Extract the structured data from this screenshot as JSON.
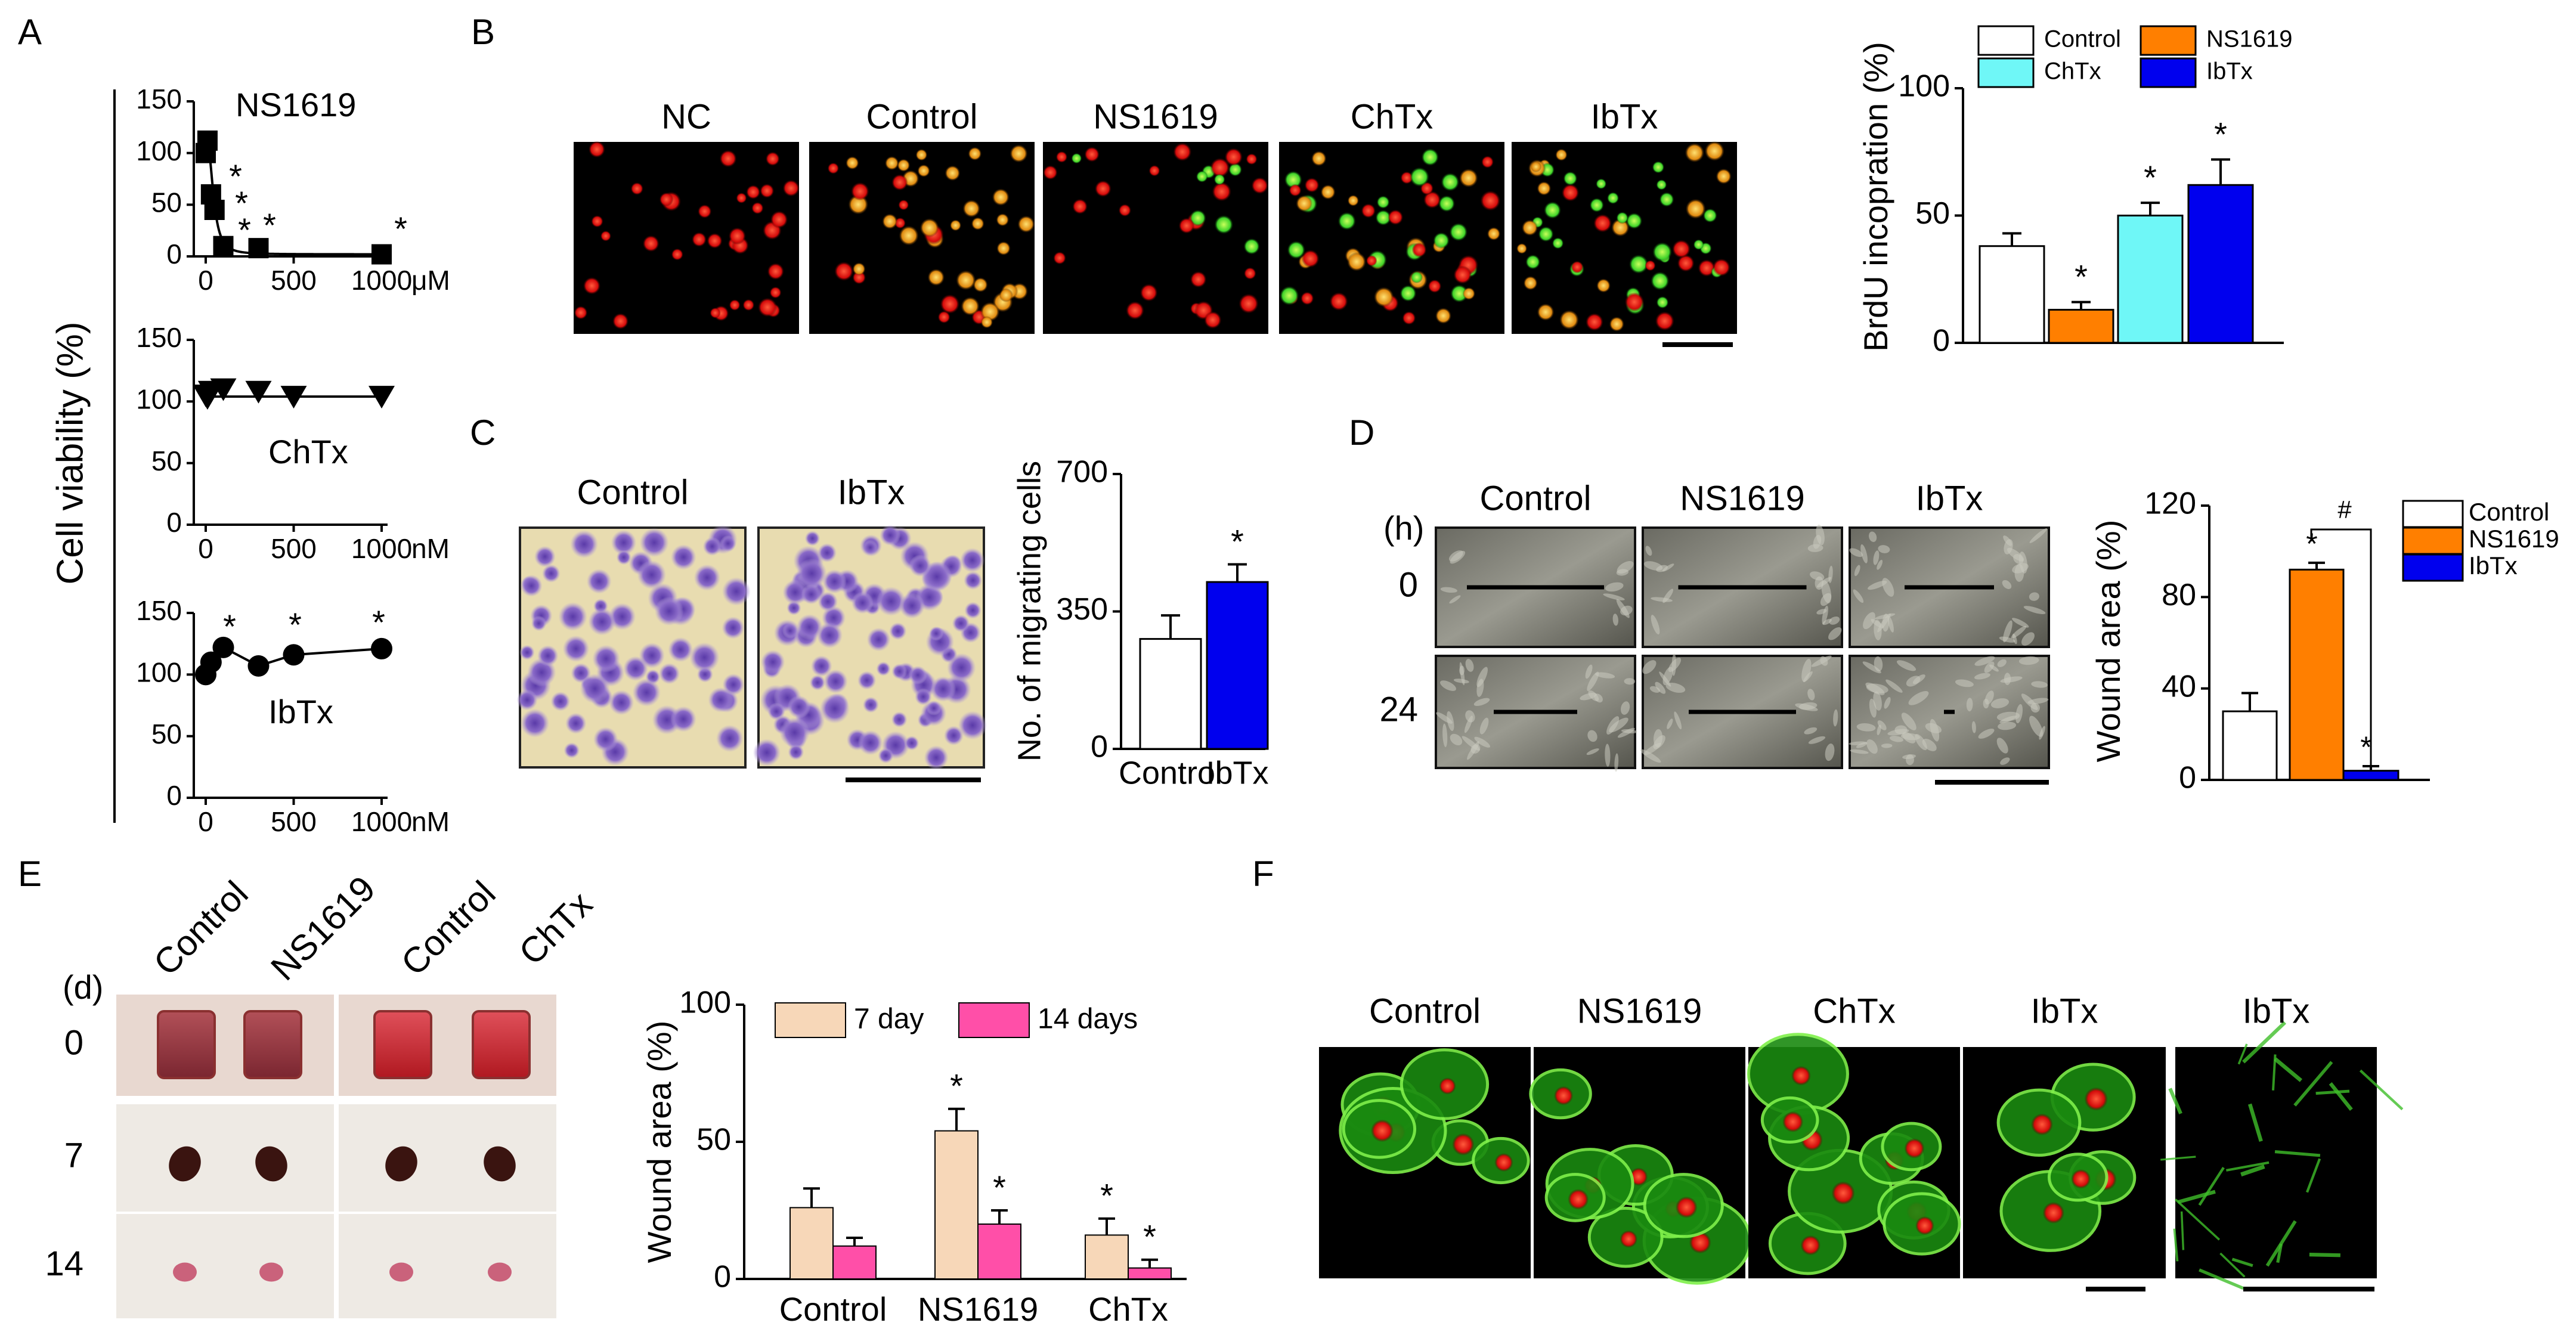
{
  "panels": {
    "A": "A",
    "B": "B",
    "C": "C",
    "D": "D",
    "E": "E",
    "F": "F"
  },
  "colors": {
    "control": "#ffffff",
    "ns1619": "#ff7f00",
    "chtx": "#6ff7f7",
    "ibtx": "#0000ee",
    "day7": "#f7d7b8",
    "day14": "#ff4fa8"
  },
  "panelA": {
    "ylabel": "Cell viability (%)",
    "sub": [
      {
        "drug": "NS1619",
        "unit": "μM",
        "yticks": [
          "150",
          "100",
          "50",
          "0"
        ],
        "xticks": [
          "0",
          "500",
          "1000"
        ]
      },
      {
        "drug": "ChTx",
        "unit": "nM",
        "yticks": [
          "150",
          "100",
          "50",
          "0"
        ],
        "xticks": [
          "0",
          "500",
          "1000"
        ]
      },
      {
        "drug": "IbTx",
        "unit": "nM",
        "yticks": [
          "150",
          "100",
          "50",
          "0"
        ],
        "xticks": [
          "0",
          "500",
          "1000"
        ]
      }
    ]
  },
  "panelB": {
    "image_labels": [
      "NC",
      "Control",
      "NS1619",
      "ChTx",
      "IbTx"
    ],
    "ylabel": "BrdU incopration (%)",
    "legend": [
      "Control",
      "NS1619",
      "ChTx",
      "IbTx"
    ],
    "star": "*"
  },
  "panelC": {
    "image_labels": [
      "Control",
      "IbTx"
    ],
    "ylabel": "No. of migrating cells",
    "star": "*"
  },
  "panelD": {
    "image_labels": [
      "Control",
      "NS1619",
      "IbTx"
    ],
    "time_unit": "(h)",
    "rows": [
      "0",
      "24"
    ],
    "ylabel": "Wound area (%)",
    "legend": [
      "Control",
      "NS1619",
      "IbTx"
    ],
    "hash": "#",
    "star": "*"
  },
  "panelE": {
    "time_unit": "(d)",
    "rows": [
      "0",
      "7",
      "14"
    ],
    "col_labels": [
      "Control",
      "NS1619",
      "Control",
      "ChTx"
    ],
    "ylabel": "Wound area (%)",
    "legend": [
      "7 day",
      "14 days"
    ],
    "star": "*"
  },
  "panelF": {
    "image_labels": [
      "Control",
      "NS1619",
      "ChTx",
      "IbTx",
      "IbTx"
    ]
  },
  "chart_data": [
    {
      "panel": "A-top",
      "type": "scatter",
      "unit": "μM",
      "x": [
        0,
        10,
        30,
        50,
        100,
        300,
        1000
      ],
      "y": [
        100,
        112,
        60,
        45,
        10,
        8,
        2
      ],
      "significant": [
        false,
        false,
        false,
        true,
        true,
        true,
        true
      ],
      "xlim": [
        0,
        1000
      ],
      "ylim": [
        0,
        150
      ]
    },
    {
      "panel": "A-middle",
      "type": "scatter",
      "unit": "nM",
      "x": [
        0,
        10,
        30,
        100,
        300,
        500,
        1000
      ],
      "y": [
        105,
        103,
        108,
        110,
        108,
        104,
        104
      ],
      "xlim": [
        0,
        1000
      ],
      "ylim": [
        0,
        150
      ]
    },
    {
      "panel": "A-bottom",
      "type": "scatter",
      "unit": "nM",
      "x": [
        0,
        30,
        100,
        300,
        500,
        1000
      ],
      "y": [
        100,
        110,
        122,
        107,
        116,
        121
      ],
      "significant": [
        false,
        false,
        true,
        false,
        true,
        true
      ],
      "xlim": [
        0,
        1000
      ],
      "ylim": [
        0,
        150
      ]
    },
    {
      "panel": "B",
      "type": "bar",
      "categories": [
        "Control",
        "NS1619",
        "ChTx",
        "IbTx"
      ],
      "values": [
        38,
        13,
        50,
        62
      ],
      "errors": [
        5,
        3,
        5,
        10
      ],
      "significant": [
        false,
        true,
        true,
        true
      ],
      "ylabel": "BrdU incopration (%)",
      "ylim": [
        0,
        100
      ],
      "yticks": [
        "0",
        "50",
        "100"
      ]
    },
    {
      "panel": "C",
      "type": "bar",
      "categories": [
        "Control",
        "IbTx"
      ],
      "values": [
        280,
        425
      ],
      "errors": [
        60,
        45
      ],
      "significant": [
        false,
        true
      ],
      "ylabel": "No. of migrating cells",
      "ylim": [
        0,
        700
      ],
      "yticks": [
        "0",
        "350",
        "700"
      ],
      "xticklabels": [
        "Control",
        "IbTx"
      ]
    },
    {
      "panel": "D",
      "type": "bar",
      "categories": [
        "Control",
        "NS1619",
        "IbTx"
      ],
      "values": [
        30,
        92,
        4
      ],
      "errors": [
        8,
        3,
        2
      ],
      "significant": [
        false,
        true,
        true
      ],
      "ylabel": "Wound area (%)",
      "ylim": [
        0,
        120
      ],
      "yticks": [
        "0",
        "40",
        "80",
        "120"
      ]
    },
    {
      "panel": "E",
      "type": "bar",
      "categories": [
        "Control",
        "NS1619",
        "ChTx"
      ],
      "series": [
        {
          "name": "7 day",
          "values": [
            26,
            54,
            16
          ],
          "errors": [
            7,
            8,
            6
          ],
          "significant": [
            false,
            true,
            true
          ]
        },
        {
          "name": "14 days",
          "values": [
            12,
            20,
            4
          ],
          "errors": [
            3,
            5,
            3
          ],
          "significant": [
            false,
            true,
            true
          ]
        }
      ],
      "ylabel": "Wound area (%)",
      "ylim": [
        0,
        100
      ],
      "yticks": [
        "0",
        "50",
        "100"
      ]
    }
  ]
}
